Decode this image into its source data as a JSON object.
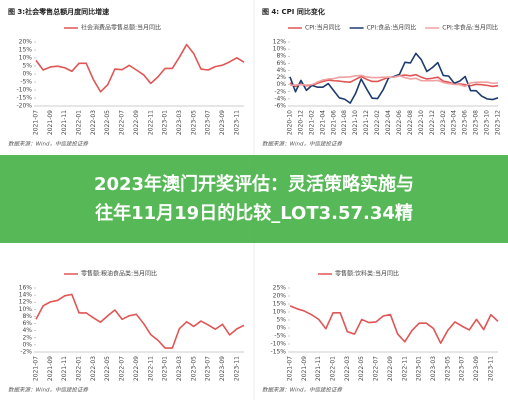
{
  "banner": {
    "lines": [
      "2023年澳门开奖评估：灵活策略实施与",
      "往年11月19日的比较_LOT3.57.34精"
    ]
  },
  "chart_data": [
    {
      "type": "line",
      "title": "图 3:社会零售总额月度同比增速",
      "source": "数据来源：Wind，中信建投证券",
      "categories": [
        "2021-07",
        null,
        "2021-09",
        null,
        "2021-11",
        null,
        "2022-01",
        null,
        "2022-03",
        null,
        "2022-05",
        null,
        "2022-07",
        null,
        "2022-09",
        null,
        "2022-11",
        null,
        "2023-01",
        null,
        "2023-03",
        null,
        "2023-05",
        null,
        "2023-07",
        null,
        "2023-09",
        null,
        "2023-11",
        null
      ],
      "series": [
        {
          "name": "社会消费品零售总额:当月同比",
          "color": "#e05555",
          "values": [
            8.5,
            2.5,
            4.4,
            4.9,
            3.9,
            1.7,
            6.7,
            6.7,
            -3.5,
            -11.1,
            -6.7,
            3.1,
            2.7,
            5.4,
            2.5,
            -0.5,
            -5.9,
            -1.8,
            3.5,
            3.5,
            10.6,
            18.4,
            12.7,
            3.1,
            2.5,
            4.6,
            5.5,
            7.6,
            10.1,
            7.4
          ]
        }
      ],
      "ylim": [
        -20,
        20
      ],
      "yticks": [
        {
          "value": 20,
          "label": "20%"
        },
        {
          "value": 15,
          "label": "15%"
        },
        {
          "value": 10,
          "label": "10%"
        },
        {
          "value": 5,
          "label": "5%"
        },
        {
          "value": 0,
          "label": "0%"
        },
        {
          "value": -5,
          "label": "-5%"
        },
        {
          "value": -10,
          "label": "-10%"
        },
        {
          "value": -15,
          "label": "-15%"
        },
        {
          "value": -20,
          "label": "-20%"
        }
      ],
      "grid": false
    },
    {
      "type": "line",
      "title": "图 4: CPI 同比变化",
      "source": "数据来源：Wind，中信建投证券",
      "categories": [
        "2020-10",
        null,
        "2020-12",
        null,
        "2021-02",
        null,
        "2021-04",
        null,
        "2021-06",
        null,
        "2021-08",
        null,
        "2021-10",
        null,
        "2021-12",
        null,
        "2022-02",
        null,
        "2022-04",
        null,
        "2022-06",
        null,
        "2022-08",
        null,
        "2022-10",
        null,
        "2022-12",
        null,
        "2023-02",
        null,
        "2023-04",
        null,
        "2023-06",
        null,
        "2023-08",
        null,
        "2023-10",
        null,
        "2023-12"
      ],
      "series": [
        {
          "name": "CPI:当月同比",
          "color": "#e05555",
          "values": [
            0.5,
            -0.5,
            0.2,
            -0.3,
            -0.2,
            0.4,
            0.9,
            1.3,
            1.1,
            1.0,
            0.8,
            0.7,
            1.5,
            2.3,
            1.5,
            0.9,
            0.9,
            1.5,
            2.1,
            2.1,
            2.5,
            2.7,
            2.5,
            2.8,
            2.1,
            1.6,
            1.8,
            2.1,
            1.0,
            0.7,
            0.1,
            0.2,
            0,
            -0.3,
            0.1,
            0,
            -0.2,
            -0.5,
            -0.3
          ]
        },
        {
          "name": "CPI:食品:当月同比",
          "color": "#1f3b6e",
          "values": [
            2.2,
            -2.0,
            1.2,
            -1.6,
            -0.2,
            -0.7,
            -0.7,
            0.3,
            -1.7,
            -3.7,
            -4.1,
            -5.2,
            -2.4,
            1.6,
            -1.2,
            -3.8,
            -3.9,
            -1.5,
            1.9,
            2.3,
            2.9,
            6.3,
            6.1,
            8.8,
            7.0,
            3.7,
            4.8,
            6.2,
            2.6,
            2.4,
            0.4,
            1.0,
            2.3,
            -1.7,
            -1.7,
            -3.2,
            -4.0,
            -4.2,
            -3.7
          ]
        },
        {
          "name": "CPI:非食品:当月同比",
          "color": "#f0a0a0",
          "values": [
            -0.2,
            -0.1,
            0,
            -0.1,
            0,
            0.7,
            1.3,
            1.6,
            1.7,
            2.1,
            2.1,
            2.2,
            2.5,
            2.6,
            2.2,
            2.0,
            2.0,
            2.1,
            2.1,
            2.1,
            2.5,
            2.0,
            1.6,
            1.8,
            1.1,
            1.1,
            1.1,
            1.2,
            0.6,
            0.3,
            0.1,
            0,
            -0.5,
            0.5,
            0.7,
            0.7,
            0.7,
            0.4,
            0.5
          ]
        }
      ],
      "ylim": [
        -6,
        12
      ],
      "yticks": [
        {
          "value": 12,
          "label": "12%"
        },
        {
          "value": 10,
          "label": "10%"
        },
        {
          "value": 8,
          "label": "8%"
        },
        {
          "value": 6,
          "label": "6%"
        },
        {
          "value": 4,
          "label": "4%"
        },
        {
          "value": 2,
          "label": "2%"
        },
        {
          "value": 0,
          "label": "0%"
        },
        {
          "value": -2,
          "label": "-2%"
        },
        {
          "value": -4,
          "label": "-4%"
        },
        {
          "value": -6,
          "label": "-6%"
        }
      ],
      "grid": false
    },
    {
      "type": "line",
      "source": "数据来源：Wind，中信建投证券",
      "categories": [
        "2021-07",
        null,
        "2021-09",
        null,
        "2021-11",
        null,
        "2022-01",
        null,
        "2022-03",
        null,
        "2022-05",
        null,
        "2022-07",
        null,
        "2022-09",
        null,
        "2022-11",
        null,
        "2023-01",
        null,
        "2023-03",
        null,
        "2023-05",
        null,
        "2023-07",
        null,
        "2023-09",
        null,
        "2023-11",
        null
      ],
      "series": [
        {
          "name": "零售额:粮油食品类:当月同比",
          "color": "#e05555",
          "values": [
            7.2,
            11.0,
            12.1,
            12.5,
            13.8,
            14.2,
            9.0,
            9.0,
            7.6,
            6.4,
            8.2,
            9.8,
            7.2,
            8.2,
            8.6,
            6.0,
            2.9,
            1.3,
            -0.9,
            -0.9,
            4.6,
            6.5,
            5.2,
            6.7,
            5.6,
            4.4,
            5.8,
            2.8,
            4.5,
            5.5
          ]
        }
      ],
      "ylim": [
        -2,
        16
      ],
      "yticks": [
        {
          "value": 16,
          "label": "16%"
        },
        {
          "value": 14,
          "label": "14%"
        },
        {
          "value": 12,
          "label": "12%"
        },
        {
          "value": 10,
          "label": "10%"
        },
        {
          "value": 8,
          "label": "8%"
        },
        {
          "value": 6,
          "label": "6%"
        },
        {
          "value": 4,
          "label": "4%"
        },
        {
          "value": 2,
          "label": "2%"
        },
        {
          "value": 0,
          "label": "0%"
        },
        {
          "value": -2,
          "label": "-2%"
        }
      ],
      "grid": false
    },
    {
      "type": "line",
      "source": "数据来源：Wind，中信建投证券",
      "categories": [
        "2021-07",
        null,
        "2021-09",
        null,
        "2021-11",
        null,
        "2022-01",
        null,
        "2022-03",
        null,
        "2022-05",
        null,
        "2022-07",
        null,
        "2022-09",
        null,
        "2022-11",
        null,
        "2023-01",
        null,
        "2023-03",
        null,
        "2023-05",
        null,
        "2023-07",
        null,
        "2023-09",
        null,
        "2023-11",
        null
      ],
      "series": [
        {
          "name": "零售额:饮料类:当月同比",
          "color": "#e05555",
          "values": [
            13.8,
            12.0,
            10.6,
            8.3,
            5.4,
            -0.5,
            9.5,
            9.5,
            -2.3,
            -3.8,
            5.3,
            3.4,
            3.8,
            7.5,
            8.4,
            -3.7,
            -8.6,
            -1.6,
            3.0,
            3.0,
            -0.3,
            -9.5,
            -1.5,
            3.8,
            1.1,
            -1.2,
            5.4,
            -1.0,
            8.3,
            4.2
          ]
        }
      ],
      "ylim": [
        -15,
        25
      ],
      "yticks": [
        {
          "value": 25,
          "label": "25%"
        },
        {
          "value": 20,
          "label": "20%"
        },
        {
          "value": 15,
          "label": "15%"
        },
        {
          "value": 10,
          "label": "10%"
        },
        {
          "value": 5,
          "label": "5%"
        },
        {
          "value": 0,
          "label": "0%"
        },
        {
          "value": -5,
          "label": "-5%"
        },
        {
          "value": -10,
          "label": "-10%"
        },
        {
          "value": -15,
          "label": "-15%"
        }
      ],
      "grid": false
    }
  ]
}
